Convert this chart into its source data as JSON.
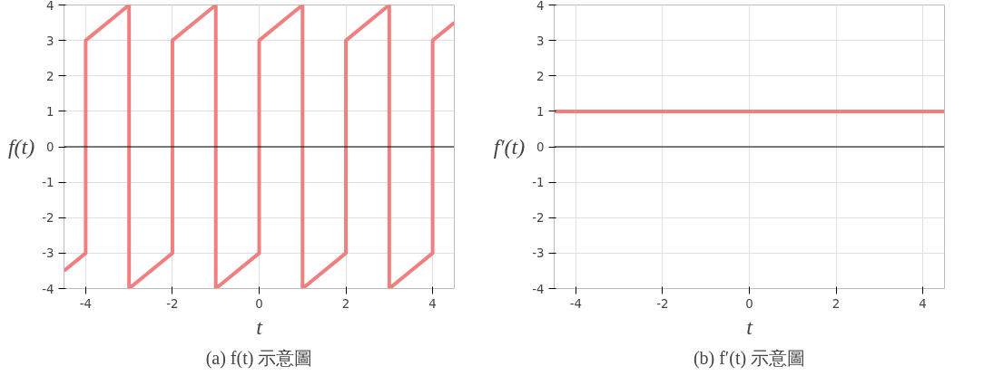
{
  "chart_data": [
    {
      "type": "line",
      "xlabel": "t",
      "ylabel": "f(t)",
      "annotations": [
        "(a) f(t) 示意圖"
      ],
      "series": [
        {
          "color": "#f08080",
          "x": [
            -4.5,
            -4,
            -4,
            -3,
            -3,
            -2,
            -2,
            -1,
            -1,
            0,
            0,
            1,
            1,
            2,
            2,
            3,
            3,
            4,
            4,
            4.5
          ],
          "values": [
            -3.5,
            -3,
            3,
            4,
            -4,
            -3,
            3,
            4,
            -4,
            -3,
            3,
            4,
            -4,
            -3,
            3,
            4,
            -4,
            -3,
            3,
            3.5
          ]
        }
      ],
      "xlim": [
        -4.5,
        4.5
      ],
      "ylim": [
        -4,
        4
      ],
      "xticks": [
        -4,
        -2,
        0,
        2,
        4
      ],
      "yticks": [
        -4,
        -3,
        -2,
        -1,
        0,
        1,
        2,
        3,
        4
      ],
      "grid": true,
      "ref_lines": [
        {
          "axis": "y",
          "value": 0,
          "color": "#000000"
        }
      ]
    },
    {
      "type": "line",
      "xlabel": "t",
      "ylabel": "f′(t)",
      "annotations": [
        "(b) f′(t) 示意圖"
      ],
      "series": [
        {
          "color": "#f08080",
          "x": [
            -4.5,
            4.5
          ],
          "values": [
            1,
            1
          ]
        }
      ],
      "xlim": [
        -4.5,
        4.5
      ],
      "ylim": [
        -4,
        4
      ],
      "xticks": [
        -4,
        -2,
        0,
        2,
        4
      ],
      "yticks": [
        -4,
        -3,
        -2,
        -1,
        0,
        1,
        2,
        3,
        4
      ],
      "grid": true,
      "ref_lines": [
        {
          "axis": "y",
          "value": 0,
          "color": "#000000"
        }
      ]
    }
  ]
}
